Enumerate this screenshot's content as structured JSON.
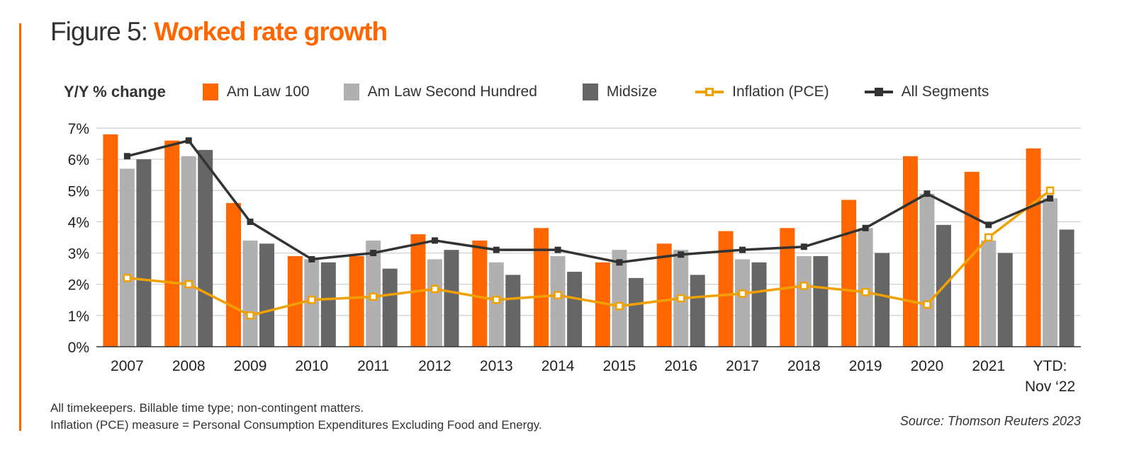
{
  "figure_label": "Figure 5: ",
  "figure_title": "Worked rate growth",
  "colors": {
    "accent": "#ff6600",
    "am_law_100": "#ff6600",
    "am_law_second_hundred": "#b0b0b0",
    "midsize": "#666666",
    "inflation": "#f0a000",
    "all_segments": "#333333",
    "grid": "#d6d6d6"
  },
  "legend": {
    "y_label": "Y/Y % change",
    "items": [
      {
        "label": "Am Law 100",
        "kind": "bar"
      },
      {
        "label": "Am Law Second Hundred",
        "kind": "bar"
      },
      {
        "label": "Midsize",
        "kind": "bar"
      },
      {
        "label": "Inflation (PCE)",
        "kind": "line-hollow-square"
      },
      {
        "label": "All Segments",
        "kind": "line-filled-square"
      }
    ]
  },
  "footnotes": [
    "All timekeepers. Billable time type; non-contingent matters.",
    "Inflation (PCE) measure =  Personal Consumption Expenditures Excluding Food and Energy."
  ],
  "source": "Source: Thomson Reuters 2023",
  "chart_data": {
    "type": "bar",
    "title": "Figure 5: Worked rate growth",
    "xlabel": "",
    "ylabel": "Y/Y % change",
    "ylim": [
      0,
      7
    ],
    "yticks": [
      0,
      1,
      2,
      3,
      4,
      5,
      6,
      7
    ],
    "ytick_labels": [
      "0%",
      "1%",
      "2%",
      "3%",
      "4%",
      "5%",
      "6%",
      "7%"
    ],
    "grid": true,
    "legend_position": "top",
    "categories": [
      "2007",
      "2008",
      "2009",
      "2010",
      "2011",
      "2012",
      "2013",
      "2014",
      "2015",
      "2016",
      "2017",
      "2018",
      "2019",
      "2020",
      "2021",
      "YTD:\nNov ‘22"
    ],
    "category_lines": [
      [
        "2007"
      ],
      [
        "2008"
      ],
      [
        "2009"
      ],
      [
        "2010"
      ],
      [
        "2011"
      ],
      [
        "2012"
      ],
      [
        "2013"
      ],
      [
        "2014"
      ],
      [
        "2015"
      ],
      [
        "2016"
      ],
      [
        "2017"
      ],
      [
        "2018"
      ],
      [
        "2019"
      ],
      [
        "2020"
      ],
      [
        "2021"
      ],
      [
        "YTD:",
        "Nov ‘22"
      ]
    ],
    "series": [
      {
        "name": "Am Law 100",
        "type": "bar",
        "values": [
          6.8,
          6.6,
          4.6,
          2.9,
          2.9,
          3.6,
          3.4,
          3.8,
          2.7,
          3.3,
          3.7,
          3.8,
          4.7,
          6.1,
          5.6,
          6.35
        ]
      },
      {
        "name": "Am Law Second Hundred",
        "type": "bar",
        "values": [
          5.7,
          6.1,
          3.4,
          2.8,
          3.4,
          2.8,
          2.7,
          2.9,
          3.1,
          3.1,
          2.8,
          2.9,
          3.8,
          4.9,
          3.4,
          4.75
        ]
      },
      {
        "name": "Midsize",
        "type": "bar",
        "values": [
          6.0,
          6.3,
          3.3,
          2.7,
          2.5,
          3.1,
          2.3,
          2.4,
          2.2,
          2.3,
          2.7,
          2.9,
          3.0,
          3.9,
          3.0,
          3.75
        ]
      },
      {
        "name": "Inflation (PCE)",
        "type": "line",
        "values": [
          2.2,
          2.0,
          1.0,
          1.5,
          1.6,
          1.85,
          1.5,
          1.65,
          1.3,
          1.55,
          1.7,
          1.95,
          1.75,
          1.35,
          3.5,
          5.0
        ]
      },
      {
        "name": "All Segments",
        "type": "line",
        "values": [
          6.1,
          6.6,
          4.0,
          2.8,
          3.0,
          3.4,
          3.1,
          3.1,
          2.7,
          2.95,
          3.1,
          3.2,
          3.8,
          4.9,
          3.9,
          4.75
        ]
      }
    ]
  }
}
